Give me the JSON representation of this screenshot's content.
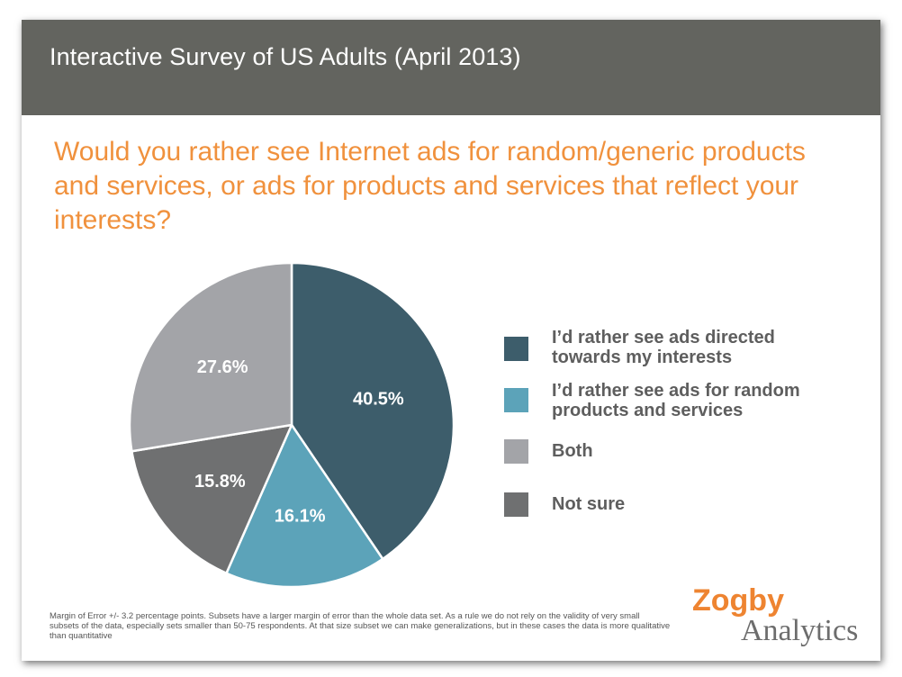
{
  "header": {
    "title": "Interactive Survey of US Adults (April 2013)"
  },
  "question": "Would you rather see Internet ads for random/generic products and services, or ads for products and services that reflect your interests?",
  "chart_data": {
    "type": "pie",
    "categories": [
      "I’d rather see ads directed towards my interests",
      "I’d rather see ads for random products and services",
      "Not sure",
      "Both"
    ],
    "values": [
      40.5,
      16.1,
      15.8,
      27.6
    ],
    "labels": [
      "40.5%",
      "16.1%",
      "15.8%",
      "27.6%"
    ],
    "colors": [
      "#3d5d6b",
      "#5ca3b9",
      "#6f7071",
      "#a3a4a8"
    ],
    "legend_position": "right"
  },
  "legend": [
    {
      "label": "I’d rather see ads directed towards my interests",
      "color": "#3d5d6b"
    },
    {
      "label": "I’d rather see ads for random products and services",
      "color": "#5ca3b9"
    },
    {
      "label": "Both",
      "color": "#a3a4a8"
    },
    {
      "label": "Not sure",
      "color": "#6f7071"
    }
  ],
  "footnote": "Margin of Error +/- 3.2 percentage points. Subsets have a larger margin of error than the whole data set. As a rule we do not rely on the validity of very small subsets of the data, especially sets smaller than 50-75 respondents. At that size subset we can make generalizations, but in these cases the data is more qualitative than quantitative",
  "logo": {
    "top": "Zogby",
    "bottom": "Analytics"
  }
}
